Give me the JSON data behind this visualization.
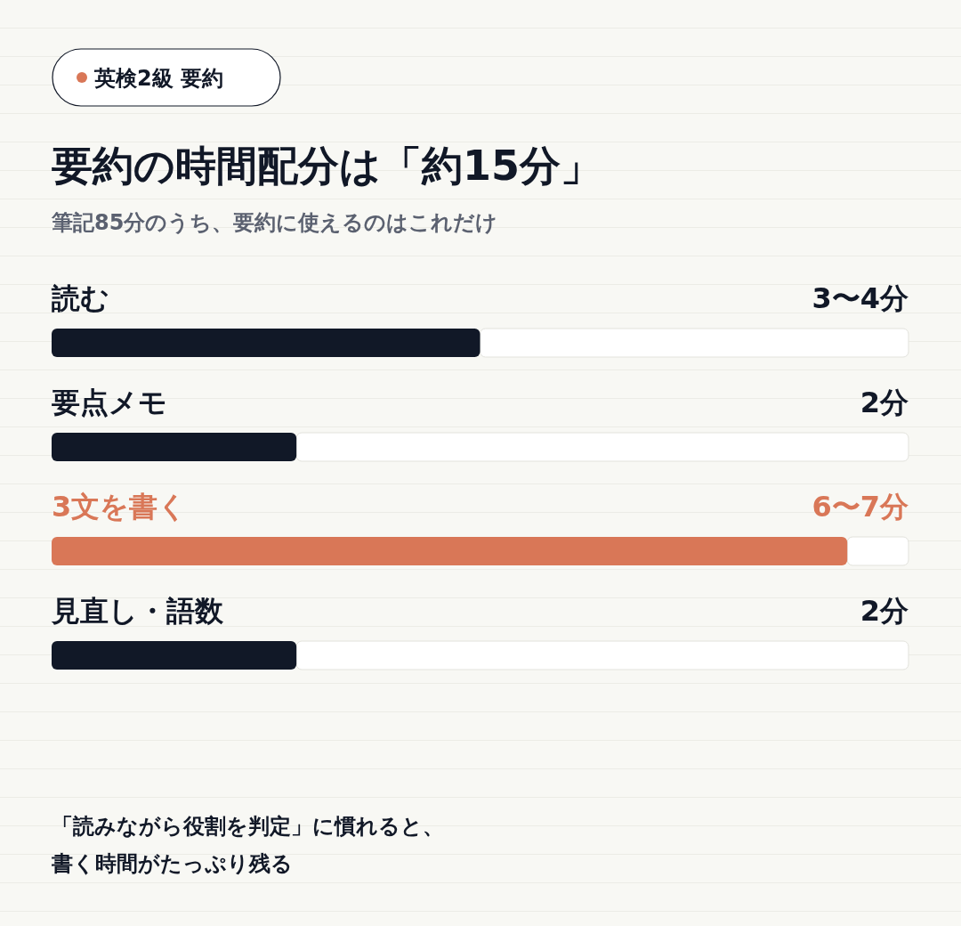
{
  "chart_data": {
    "type": "bar",
    "orientation": "horizontal",
    "xlim": [
      0,
      7
    ],
    "title": "要約の時間配分は「約15分」",
    "subtitle": "筆記85分のうち、要約に使えるのはこれだけ",
    "categories": [
      "読む",
      "要点メモ",
      "3文を書く",
      "見直し・語数"
    ],
    "values": [
      3.5,
      2,
      6.5,
      2
    ],
    "colors": [
      "#111827",
      "#111827",
      "#d97757",
      "#111827"
    ],
    "value_labels": [
      "3〜4分",
      "2分",
      "6〜7分",
      "2分"
    ],
    "annotations": [
      "英検2級 要約",
      "「読みながら役割を判定」に慣れると、",
      "書く時間がたっぷり残る"
    ]
  }
}
